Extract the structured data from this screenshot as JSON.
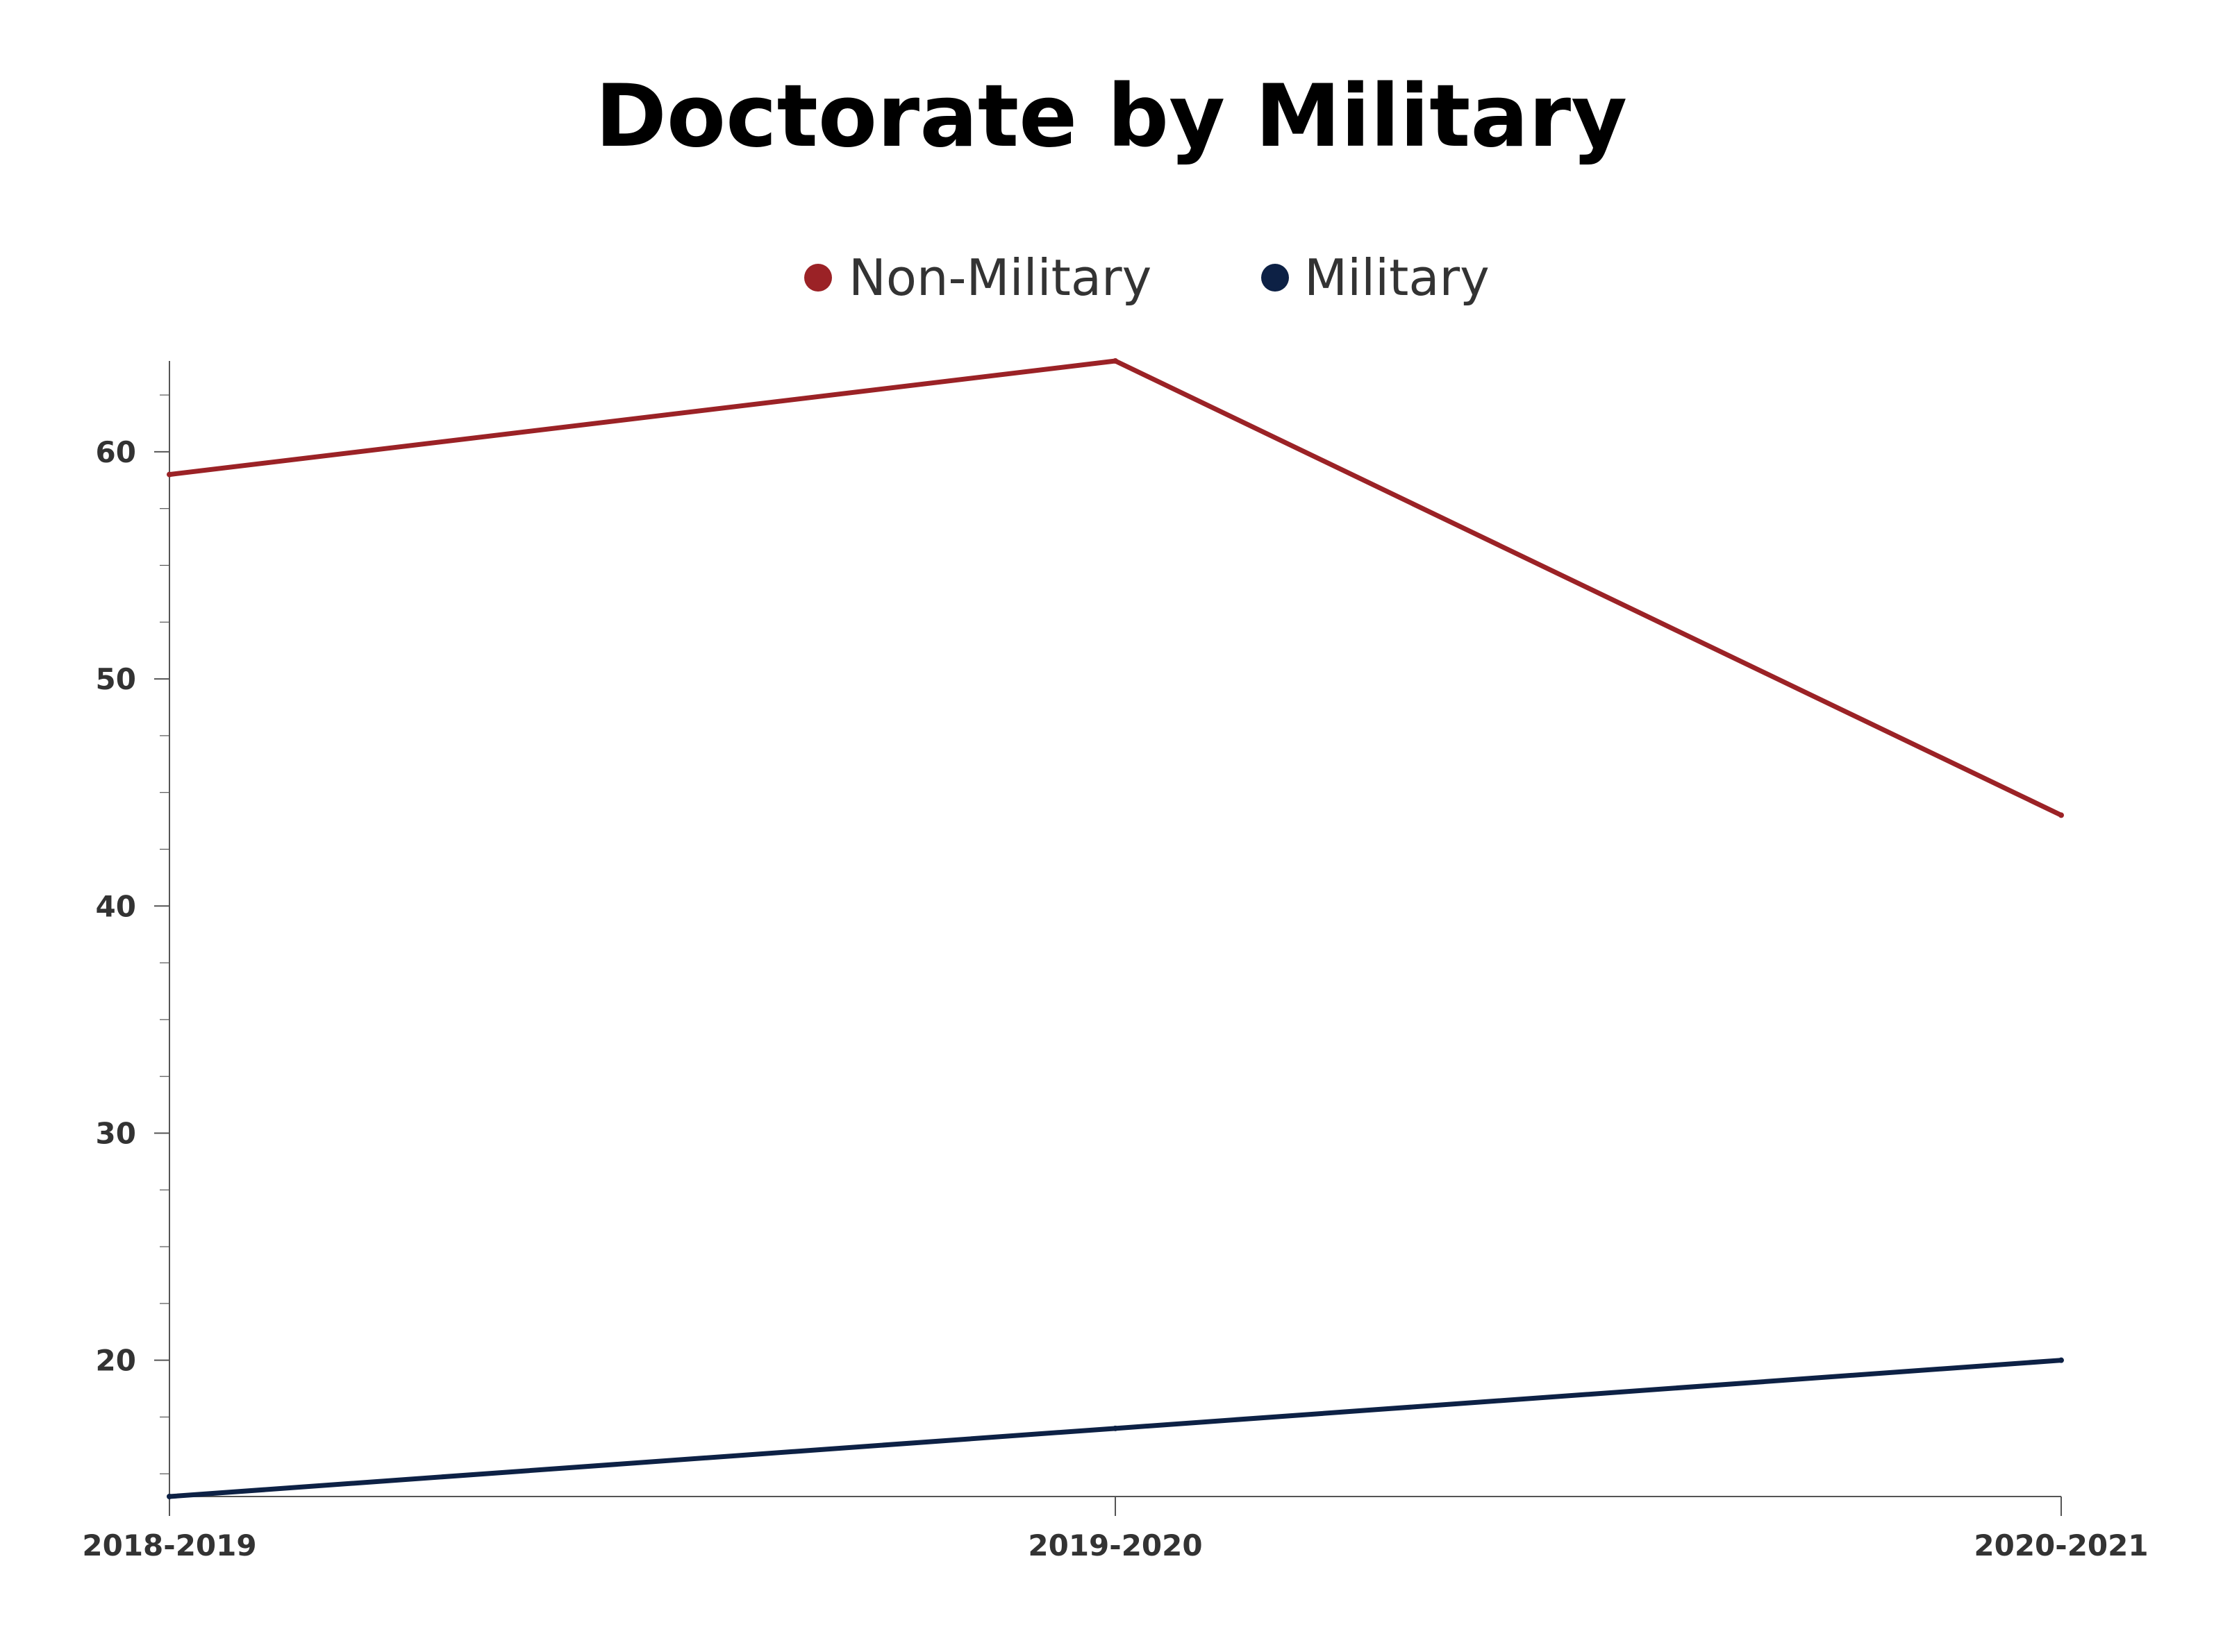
{
  "chart_data": {
    "type": "line",
    "title": "Doctorate by Military",
    "xlabel": "",
    "ylabel": "",
    "categories": [
      "2018-2019",
      "2019-2020",
      "2020-2021"
    ],
    "series": [
      {
        "name": "Non-Military",
        "color": "#9b2226",
        "values": [
          59,
          64,
          44
        ]
      },
      {
        "name": "Military",
        "color": "#0d2145",
        "values": [
          14,
          17,
          20
        ]
      }
    ],
    "ylim": [
      14,
      64
    ],
    "yticks": [
      20,
      30,
      40,
      50,
      60
    ],
    "y_minor_step": 2.5,
    "grid": false,
    "legend_position": "top-center"
  }
}
